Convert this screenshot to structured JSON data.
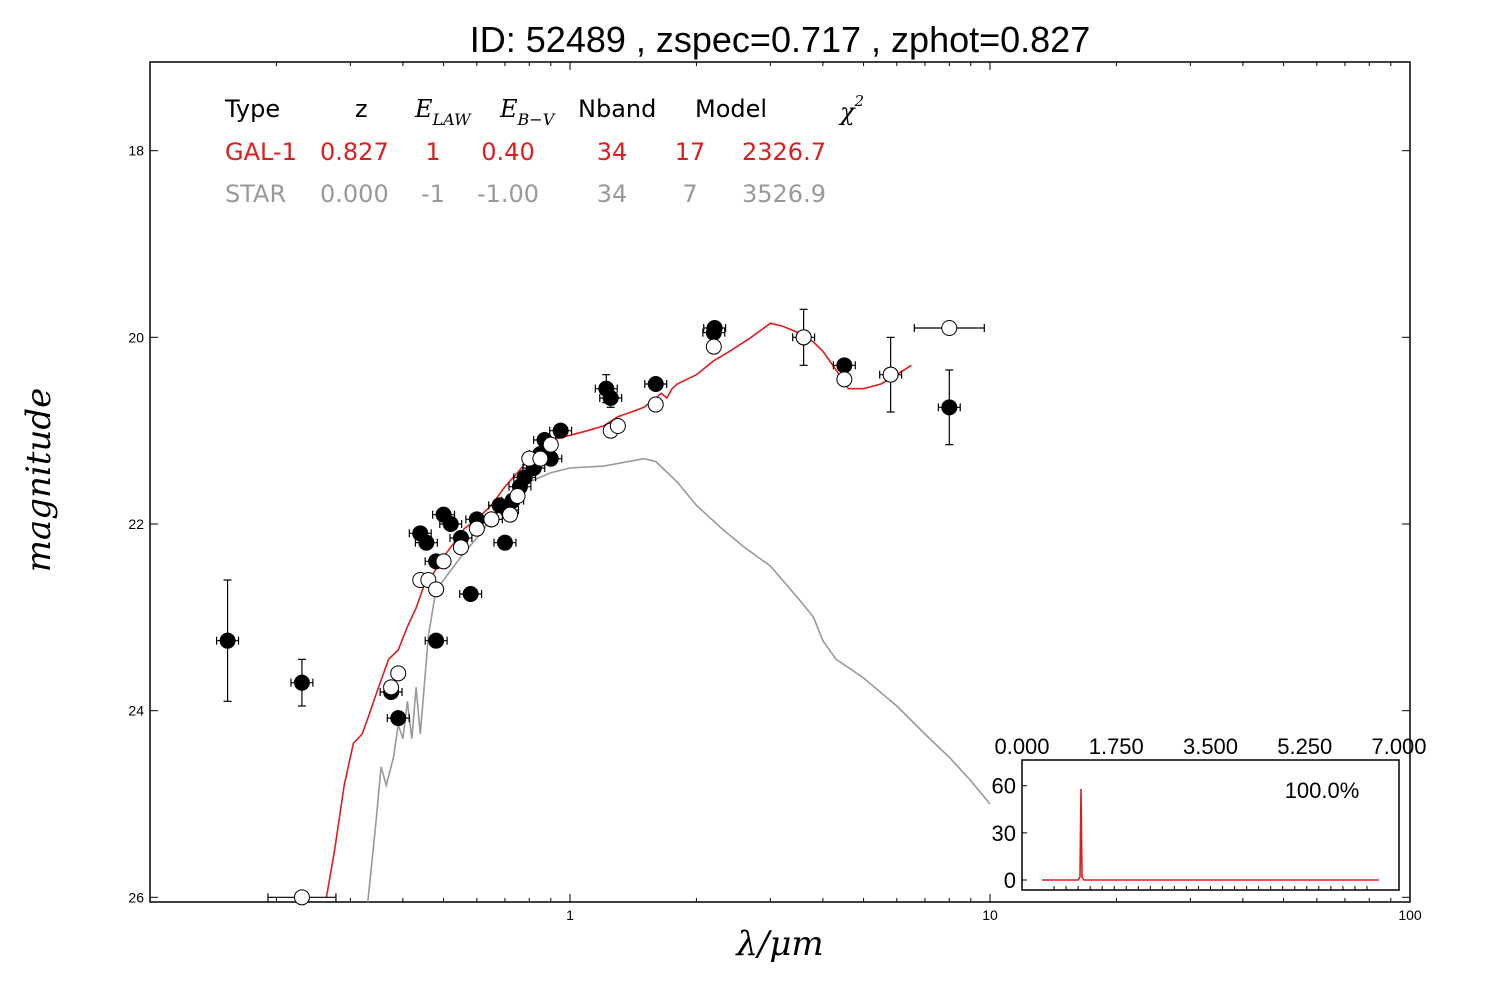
{
  "title": "ID:  52489 , zspec=0.717 , zphot=0.827",
  "colors": {
    "galaxy": "#dd1e1e",
    "star": "#999999",
    "axis": "#000000"
  },
  "table": {
    "headers": [
      "Type",
      "z",
      "Nband",
      "Model"
    ],
    "header_math": {
      "elaw_main": "E",
      "elaw_sub": "LAW",
      "ebv_main": "E",
      "ebv_sub": "B−V",
      "chi_main": "χ",
      "chi_sup": "2"
    },
    "rows": [
      {
        "name": "galaxy",
        "color": "#dd1e1e",
        "cells": [
          "GAL-1",
          "0.827",
          "1",
          "0.40",
          "34",
          "17",
          "2326.7"
        ]
      },
      {
        "name": "star",
        "color": "#999999",
        "cells": [
          "STAR",
          "0.000",
          "-1",
          "-1.00",
          "34",
          "7",
          "3526.9"
        ]
      }
    ]
  },
  "chart_data": [
    {
      "type": "scatter",
      "xlabel": "λ/μm",
      "ylabel": "magnitude",
      "xscale": "log",
      "xlim": [
        0.1,
        100
      ],
      "ylim": [
        26.05,
        17.05
      ],
      "y_inverted": true,
      "xticks": [
        1,
        10,
        100
      ],
      "xtick_labels": [
        "1",
        "10",
        "100"
      ],
      "yticks": [
        18,
        20,
        22,
        24,
        26
      ],
      "ytick_labels": [
        "18",
        "20",
        "22",
        "24",
        "26"
      ],
      "series": [
        {
          "kind": "line",
          "color": "#dd1e1e",
          "x": [
            0.263,
            0.275,
            0.29,
            0.305,
            0.32,
            0.335,
            0.35,
            0.37,
            0.39,
            0.41,
            0.43,
            0.45,
            0.47,
            0.5,
            0.53,
            0.56,
            0.6,
            0.65,
            0.7,
            0.75,
            0.8,
            0.85,
            0.9,
            1.0,
            1.1,
            1.2,
            1.3,
            1.4,
            1.5,
            1.6,
            1.65,
            1.7,
            1.75,
            1.8,
            1.9,
            2.0,
            2.2,
            2.4,
            2.7,
            3.0,
            3.2,
            3.5,
            3.8,
            4.0,
            4.3,
            4.6,
            5.0,
            5.5,
            6.0,
            6.5
          ],
          "y": [
            26.0,
            25.5,
            24.8,
            24.35,
            24.25,
            24.0,
            23.75,
            23.45,
            23.35,
            23.1,
            22.9,
            22.65,
            22.55,
            22.35,
            22.2,
            22.05,
            21.95,
            21.8,
            21.6,
            21.45,
            21.3,
            21.2,
            21.1,
            21.05,
            21.0,
            20.95,
            20.85,
            20.8,
            20.75,
            20.65,
            20.6,
            20.65,
            20.55,
            20.5,
            20.45,
            20.4,
            20.25,
            20.15,
            20.0,
            19.85,
            19.88,
            19.95,
            20.05,
            20.15,
            20.35,
            20.55,
            20.55,
            20.5,
            20.4,
            20.3
          ]
        },
        {
          "kind": "line",
          "color": "#999999",
          "x": [
            0.33,
            0.345,
            0.355,
            0.365,
            0.38,
            0.39,
            0.4,
            0.41,
            0.42,
            0.43,
            0.44,
            0.46,
            0.48,
            0.5,
            0.55,
            0.6,
            0.7,
            0.8,
            0.9,
            1.0,
            1.2,
            1.5,
            1.6,
            1.8,
            2.0,
            2.3,
            2.6,
            3.0,
            3.5,
            3.8,
            4.0,
            4.3,
            5.0,
            6.0,
            7.0,
            8.0,
            9.0,
            10.0
          ],
          "y": [
            26.05,
            25.2,
            24.6,
            24.8,
            24.5,
            24.15,
            24.3,
            23.9,
            24.3,
            23.75,
            24.25,
            23.2,
            22.7,
            22.6,
            22.35,
            22.15,
            21.75,
            21.55,
            21.45,
            21.4,
            21.38,
            21.3,
            21.33,
            21.55,
            21.8,
            22.05,
            22.25,
            22.45,
            22.8,
            23.0,
            23.25,
            23.45,
            23.65,
            23.95,
            24.25,
            24.5,
            24.75,
            25.0
          ]
        },
        {
          "kind": "points",
          "fill": "#000000",
          "stroke": "#000000",
          "x": [
            0.153,
            0.23,
            0.375,
            0.39,
            0.44,
            0.455,
            0.48,
            0.48,
            0.5,
            0.52,
            0.55,
            0.58,
            0.6,
            0.65,
            0.68,
            0.7,
            0.71,
            0.73,
            0.76,
            0.78,
            0.82,
            0.85,
            0.87,
            0.9,
            0.95,
            1.22,
            1.25,
            1.6,
            2.2,
            2.21,
            3.6,
            4.5,
            5.8,
            8.0
          ],
          "y": [
            23.25,
            23.7,
            23.8,
            24.08,
            22.1,
            22.2,
            23.25,
            22.4,
            21.9,
            22.0,
            22.15,
            22.75,
            21.95,
            21.95,
            21.8,
            22.2,
            21.85,
            21.75,
            21.6,
            21.5,
            21.4,
            21.25,
            21.1,
            21.3,
            21.0,
            20.55,
            20.65,
            20.5,
            19.95,
            19.9,
            20.0,
            20.3,
            20.4,
            20.75
          ],
          "yerr": [
            0.65,
            0.25,
            0.05,
            0.05,
            0.05,
            0.05,
            0.05,
            0.05,
            0.05,
            0.05,
            0.05,
            0.05,
            0.05,
            0.05,
            0.05,
            0.05,
            0.05,
            0.05,
            0.05,
            0.05,
            0.05,
            0.05,
            0.05,
            0.05,
            0.05,
            0.15,
            0.1,
            0.05,
            0.08,
            0.05,
            0.3,
            0.05,
            0.4,
            0.4
          ]
        },
        {
          "kind": "points",
          "fill": "#ffffff",
          "stroke": "#000000",
          "x": [
            0.23,
            0.375,
            0.39,
            0.44,
            0.46,
            0.48,
            0.5,
            0.55,
            0.6,
            0.65,
            0.72,
            0.75,
            0.8,
            0.85,
            0.9,
            1.25,
            1.3,
            1.6,
            2.2,
            3.6,
            4.5,
            5.8,
            8.0
          ],
          "y": [
            26.0,
            23.75,
            23.6,
            22.6,
            22.6,
            22.7,
            22.4,
            22.25,
            22.05,
            21.95,
            21.9,
            21.7,
            21.3,
            21.3,
            21.15,
            21.0,
            20.95,
            20.72,
            20.1,
            20.0,
            20.45,
            20.4,
            19.9
          ]
        }
      ]
    },
    {
      "type": "line",
      "xlim": [
        0,
        7
      ],
      "ylim": [
        -5,
        70
      ],
      "xticks": [
        0,
        1.75,
        3.5,
        5.25,
        7
      ],
      "xtick_labels": [
        "0.000",
        "1.750",
        "3.500",
        "5.250",
        "7.000"
      ],
      "yticks": [
        0,
        30,
        60
      ],
      "ytick_labels": [
        "0",
        "30",
        "60"
      ],
      "annotation": "100.0%",
      "series": [
        {
          "color": "#dd1e1e",
          "x": [
            0.0,
            0.75,
            0.79,
            0.81,
            0.83,
            0.87,
            7.0
          ],
          "y": [
            0,
            0,
            2,
            58,
            2,
            0,
            0
          ]
        }
      ]
    }
  ]
}
